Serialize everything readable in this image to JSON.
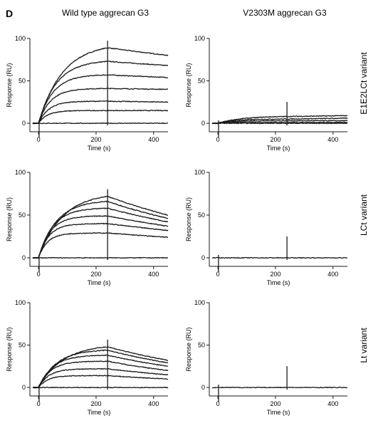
{
  "figure": {
    "panel_letter": "D",
    "column_titles": [
      "Wild type aggrecan G3",
      "V2303M aggrecan G3"
    ],
    "row_labels": [
      "E1E2LCt variant",
      "LCt variant",
      "Lt variant"
    ],
    "stroke_color": "#1a1a1a"
  },
  "chart_data": [
    {
      "type": "line",
      "title": "",
      "column": "Wild type aggrecan G3",
      "row": "E1E2LCt variant",
      "xlabel": "Time (s)",
      "ylabel": "Response (RU)",
      "xlim": [
        -30,
        450
      ],
      "ylim": [
        -10,
        100
      ],
      "xticks": [
        0,
        200,
        400
      ],
      "yticks": [
        0,
        50,
        100
      ],
      "injection_end_s": 240,
      "series": [
        {
          "equilibrium_at_240s": 89,
          "value_at_450s": 80
        },
        {
          "equilibrium_at_240s": 73,
          "value_at_450s": 68
        },
        {
          "equilibrium_at_240s": 57,
          "value_at_450s": 54
        },
        {
          "equilibrium_at_240s": 41,
          "value_at_450s": 40
        },
        {
          "equilibrium_at_240s": 26,
          "value_at_450s": 25
        },
        {
          "equilibrium_at_240s": 15,
          "value_at_450s": 15
        },
        {
          "equilibrium_at_240s": 0,
          "value_at_450s": 0
        }
      ]
    },
    {
      "type": "line",
      "title": "",
      "column": "V2303M aggrecan G3",
      "row": "E1E2LCt variant",
      "xlabel": "Time (s)",
      "ylabel": "Response (RU)",
      "xlim": [
        -30,
        450
      ],
      "ylim": [
        -10,
        100
      ],
      "xticks": [
        0,
        200,
        400
      ],
      "yticks": [
        0,
        50,
        100
      ],
      "injection_end_s": 240,
      "series": [
        {
          "equilibrium_at_240s": 8,
          "value_at_450s": 9
        },
        {
          "equilibrium_at_240s": 5,
          "value_at_450s": 6
        },
        {
          "equilibrium_at_240s": 3,
          "value_at_450s": 3
        },
        {
          "equilibrium_at_240s": 1,
          "value_at_450s": 1
        },
        {
          "equilibrium_at_240s": 0,
          "value_at_450s": 0
        }
      ]
    },
    {
      "type": "line",
      "title": "",
      "column": "Wild type aggrecan G3",
      "row": "LCt variant",
      "xlabel": "Time (s)",
      "ylabel": "Response (RU)",
      "xlim": [
        -30,
        450
      ],
      "ylim": [
        -10,
        100
      ],
      "xticks": [
        0,
        200,
        400
      ],
      "yticks": [
        0,
        50,
        100
      ],
      "injection_end_s": 240,
      "series": [
        {
          "equilibrium_at_240s": 72,
          "value_at_450s": 50
        },
        {
          "equilibrium_at_240s": 66,
          "value_at_450s": 46
        },
        {
          "equilibrium_at_240s": 58,
          "value_at_450s": 42
        },
        {
          "equilibrium_at_240s": 49,
          "value_at_450s": 37
        },
        {
          "equilibrium_at_240s": 40,
          "value_at_450s": 32
        },
        {
          "equilibrium_at_240s": 29,
          "value_at_450s": 24
        },
        {
          "equilibrium_at_240s": 0,
          "value_at_450s": 0
        }
      ]
    },
    {
      "type": "line",
      "title": "",
      "column": "V2303M aggrecan G3",
      "row": "LCt variant",
      "xlabel": "Time (s)",
      "ylabel": "Response (RU)",
      "xlim": [
        -30,
        450
      ],
      "ylim": [
        -10,
        100
      ],
      "xticks": [
        0,
        200,
        400
      ],
      "yticks": [
        0,
        50,
        100
      ],
      "injection_end_s": 240,
      "series": [
        {
          "equilibrium_at_240s": 0,
          "value_at_450s": 0
        }
      ]
    },
    {
      "type": "line",
      "title": "",
      "column": "Wild type aggrecan G3",
      "row": "Lt variant",
      "xlabel": "Time (s)",
      "ylabel": "Response (RU)",
      "xlim": [
        -30,
        450
      ],
      "ylim": [
        -10,
        100
      ],
      "xticks": [
        0,
        200,
        400
      ],
      "yticks": [
        0,
        50,
        100
      ],
      "injection_end_s": 240,
      "series": [
        {
          "equilibrium_at_240s": 48,
          "value_at_450s": 32
        },
        {
          "equilibrium_at_240s": 44,
          "value_at_450s": 29
        },
        {
          "equilibrium_at_240s": 38,
          "value_at_450s": 25
        },
        {
          "equilibrium_at_240s": 31,
          "value_at_450s": 20
        },
        {
          "equilibrium_at_240s": 22,
          "value_at_450s": 15
        },
        {
          "equilibrium_at_240s": 14,
          "value_at_450s": 10
        },
        {
          "equilibrium_at_240s": 0,
          "value_at_450s": 0
        }
      ]
    },
    {
      "type": "line",
      "title": "",
      "column": "V2303M aggrecan G3",
      "row": "Lt variant",
      "xlabel": "Time (s)",
      "ylabel": "Response (RU)",
      "xlim": [
        -30,
        450
      ],
      "ylim": [
        -10,
        100
      ],
      "xticks": [
        0,
        200,
        400
      ],
      "yticks": [
        0,
        50,
        100
      ],
      "injection_end_s": 240,
      "series": [
        {
          "equilibrium_at_240s": 0,
          "value_at_450s": 0
        }
      ]
    }
  ]
}
